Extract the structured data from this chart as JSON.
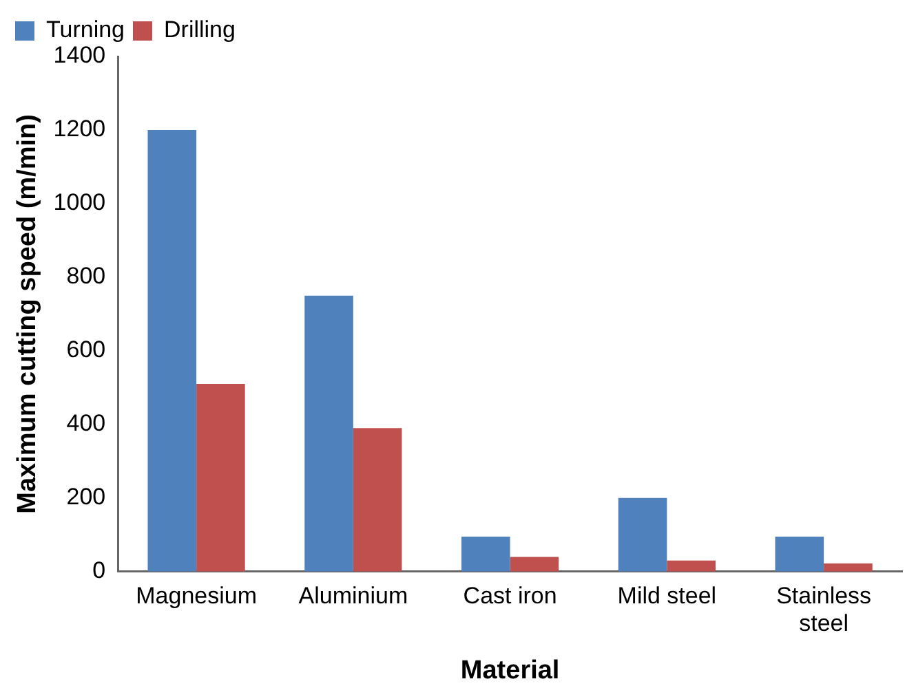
{
  "chart_data": {
    "type": "bar",
    "xlabel": "Material",
    "ylabel": "Maximum cutting speed (m/min)",
    "categories": [
      "Magnesium",
      "Aluminium",
      "Cast iron",
      "Mild steel",
      "Stainless steel"
    ],
    "series": [
      {
        "name": "Turning",
        "color": "#4f81bd",
        "values": [
          1200,
          750,
          95,
          200,
          95
        ]
      },
      {
        "name": "Drilling",
        "color": "#c0504d",
        "values": [
          510,
          390,
          40,
          30,
          22
        ]
      }
    ],
    "ylim": [
      0,
      1400
    ],
    "yticks": [
      0,
      200,
      400,
      600,
      800,
      1000,
      1200,
      1400
    ],
    "grid": false,
    "legend": "top left"
  }
}
